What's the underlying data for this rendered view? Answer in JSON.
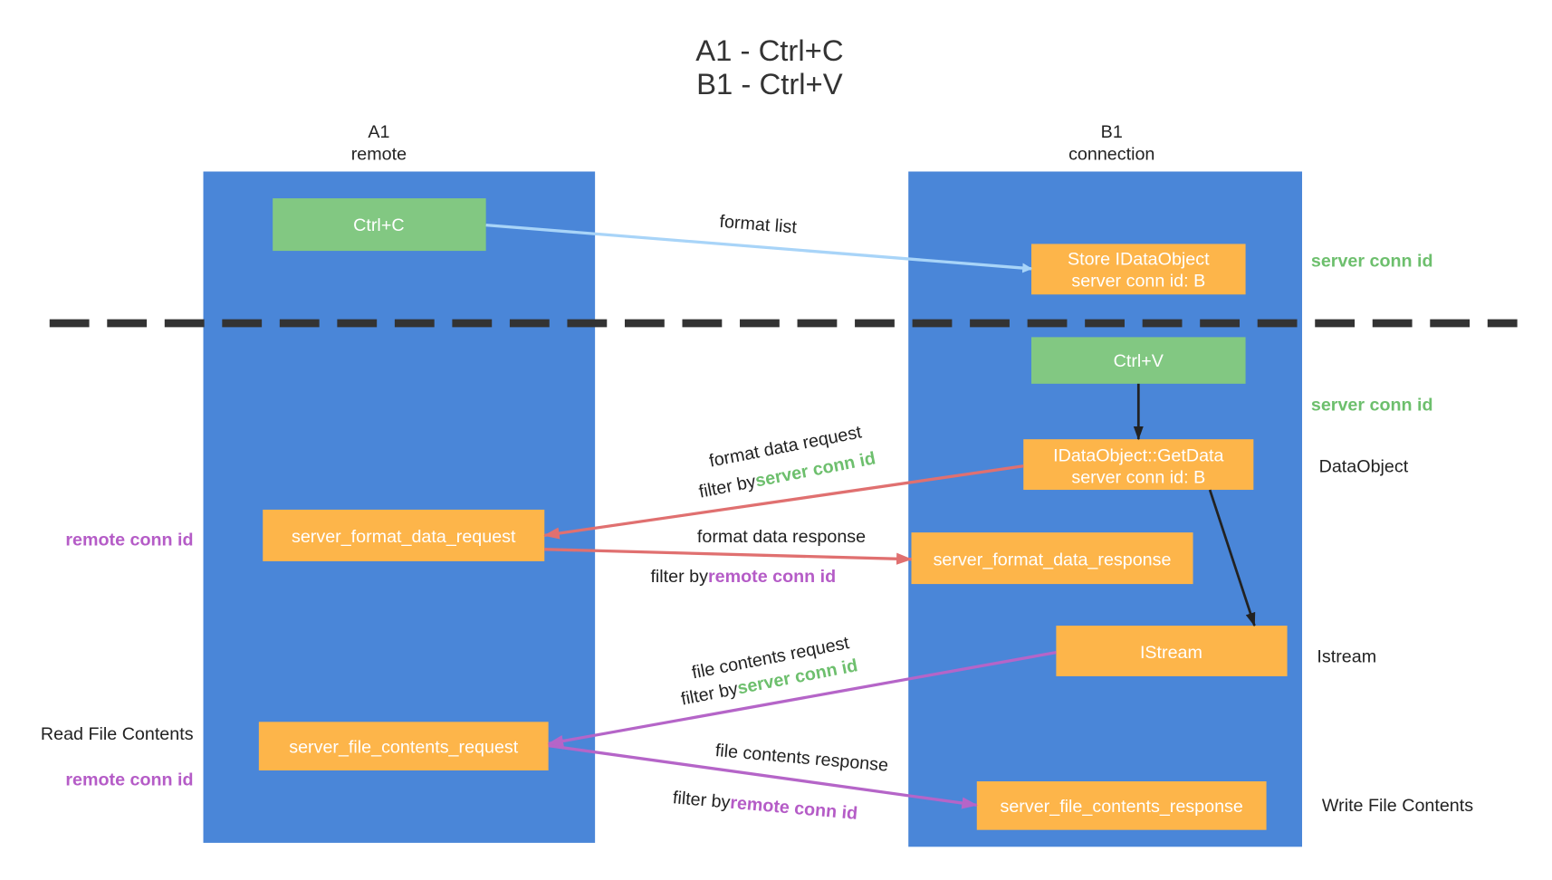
{
  "title": {
    "line1": "A1 - Ctrl+C",
    "line2": "B1 - Ctrl+V"
  },
  "lanes": {
    "left": {
      "name": "A1",
      "role": "remote"
    },
    "right": {
      "name": "B1",
      "role": "connection"
    }
  },
  "boxes": {
    "ctrl_c": "Ctrl+C",
    "store_line1": "Store IDataObject",
    "store_line2": "server conn id: B",
    "ctrl_v": "Ctrl+V",
    "getdata_line1": "IDataObject::GetData",
    "getdata_line2": "server conn id: B",
    "format_req": "server_format_data_request",
    "format_resp": "server_format_data_response",
    "istream": "IStream",
    "file_req": "server_file_contents_request",
    "file_resp": "server_file_contents_response"
  },
  "edges": {
    "format_list": "format list",
    "format_data_request": "format data request",
    "format_data_response": "format data response",
    "file_contents_request": "file contents request",
    "file_contents_response": "file contents response",
    "filter_by": "filter by",
    "server_conn_id": "server conn id",
    "remote_conn_id": "remote conn id"
  },
  "side_labels": {
    "server_conn_id_1": "server conn id",
    "server_conn_id_2": "server conn id",
    "dataobject": "DataObject",
    "istream": "Istream",
    "write_file": "Write File Contents",
    "remote_conn_id_1": "remote conn id",
    "read_file": "Read File Contents",
    "remote_conn_id_2": "remote conn id"
  },
  "colors": {
    "lane": "#4a86d8",
    "green_box": "#82c882",
    "orange_box": "#fdb54a",
    "format_list": "#a8d4f8",
    "red": "#e07070",
    "purple": "#b565c8",
    "server_id": "#6dbf6d",
    "remote_id": "#b55cc7"
  }
}
